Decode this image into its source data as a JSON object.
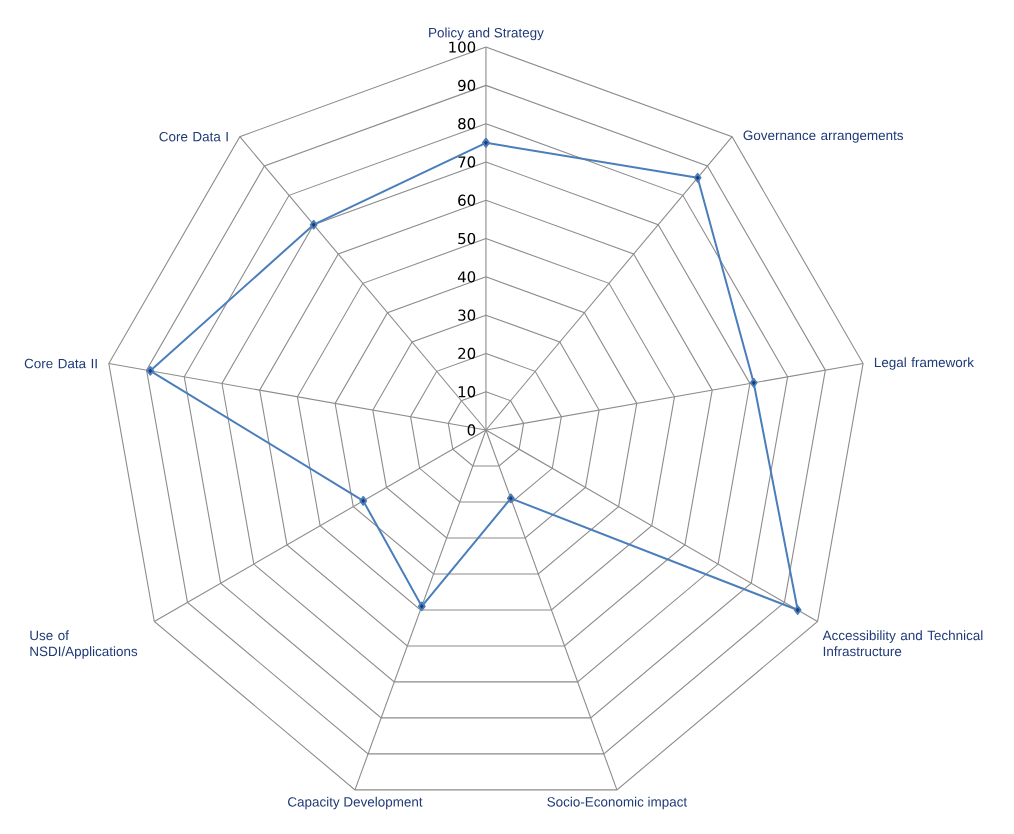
{
  "chart_data": {
    "type": "radar",
    "categories": [
      "Policy and Strategy",
      "Governance arrangements",
      "Legal framework",
      "Accessibility and Technical Infrastructure",
      "Socio-Economic  impact",
      "Capacity Development",
      "Use of NSDI/Applications",
      "Core Data II",
      "Core Data I"
    ],
    "series": [
      {
        "color": "#4a7ebb",
        "values": [
          75,
          86,
          71,
          94,
          19,
          49,
          37,
          89,
          70
        ]
      }
    ],
    "ylim": [
      0,
      100
    ],
    "yticks": [
      0,
      10,
      20,
      30,
      40,
      50,
      60,
      70,
      80,
      90,
      100
    ],
    "grid": true,
    "marker": "diamond",
    "line_style": "solid"
  }
}
